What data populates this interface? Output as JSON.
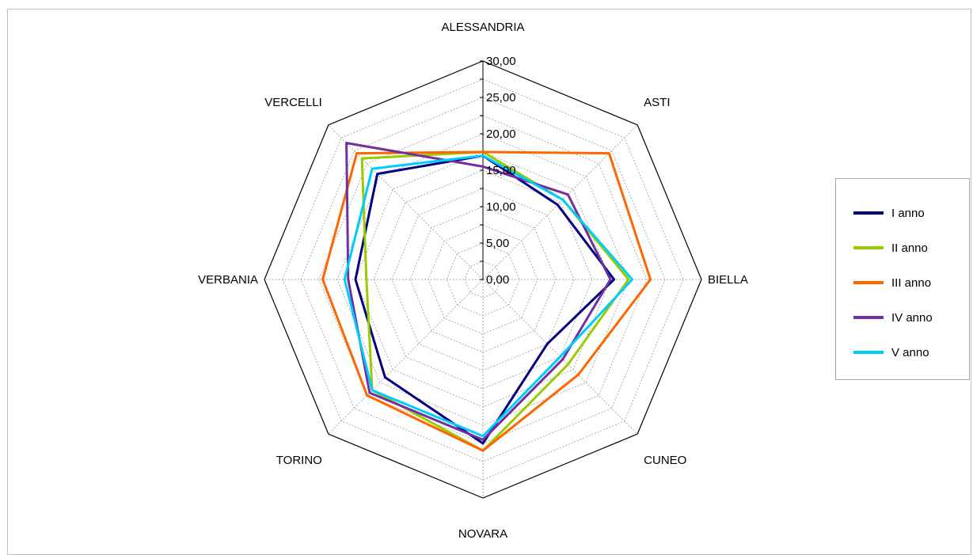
{
  "chart_data": {
    "type": "radar",
    "categories": [
      "ALESSANDRIA",
      "ASTI",
      "BIELLA",
      "CUNEO",
      "NOVARA",
      "TORINO",
      "VERBANIA",
      "VERCELLI"
    ],
    "r_ticks": [
      "0,00",
      "5,00",
      "10,00",
      "15,00",
      "20,00",
      "25,00",
      "30,00"
    ],
    "r_range": [
      0,
      30
    ],
    "grid": true,
    "legend_position": "right",
    "series": [
      {
        "name": "I anno",
        "color": "#000080",
        "values": [
          17.0,
          14.5,
          18.0,
          12.5,
          22.5,
          19.0,
          17.5,
          20.5
        ]
      },
      {
        "name": "II anno",
        "color": "#99cc00",
        "values": [
          17.5,
          15.5,
          20.0,
          16.5,
          23.5,
          21.5,
          16.0,
          23.5
        ]
      },
      {
        "name": "III anno",
        "color": "#ff6600",
        "values": [
          17.5,
          24.5,
          23.0,
          18.5,
          23.5,
          22.5,
          22.0,
          24.5
        ]
      },
      {
        "name": "IV anno",
        "color": "#7030a0",
        "values": [
          15.5,
          16.5,
          17.5,
          15.5,
          22.0,
          22.0,
          18.5,
          26.5
        ]
      },
      {
        "name": "V anno",
        "color": "#00ccff",
        "values": [
          17.0,
          15.5,
          20.5,
          15.0,
          21.5,
          21.5,
          19.0,
          21.5
        ]
      }
    ]
  }
}
